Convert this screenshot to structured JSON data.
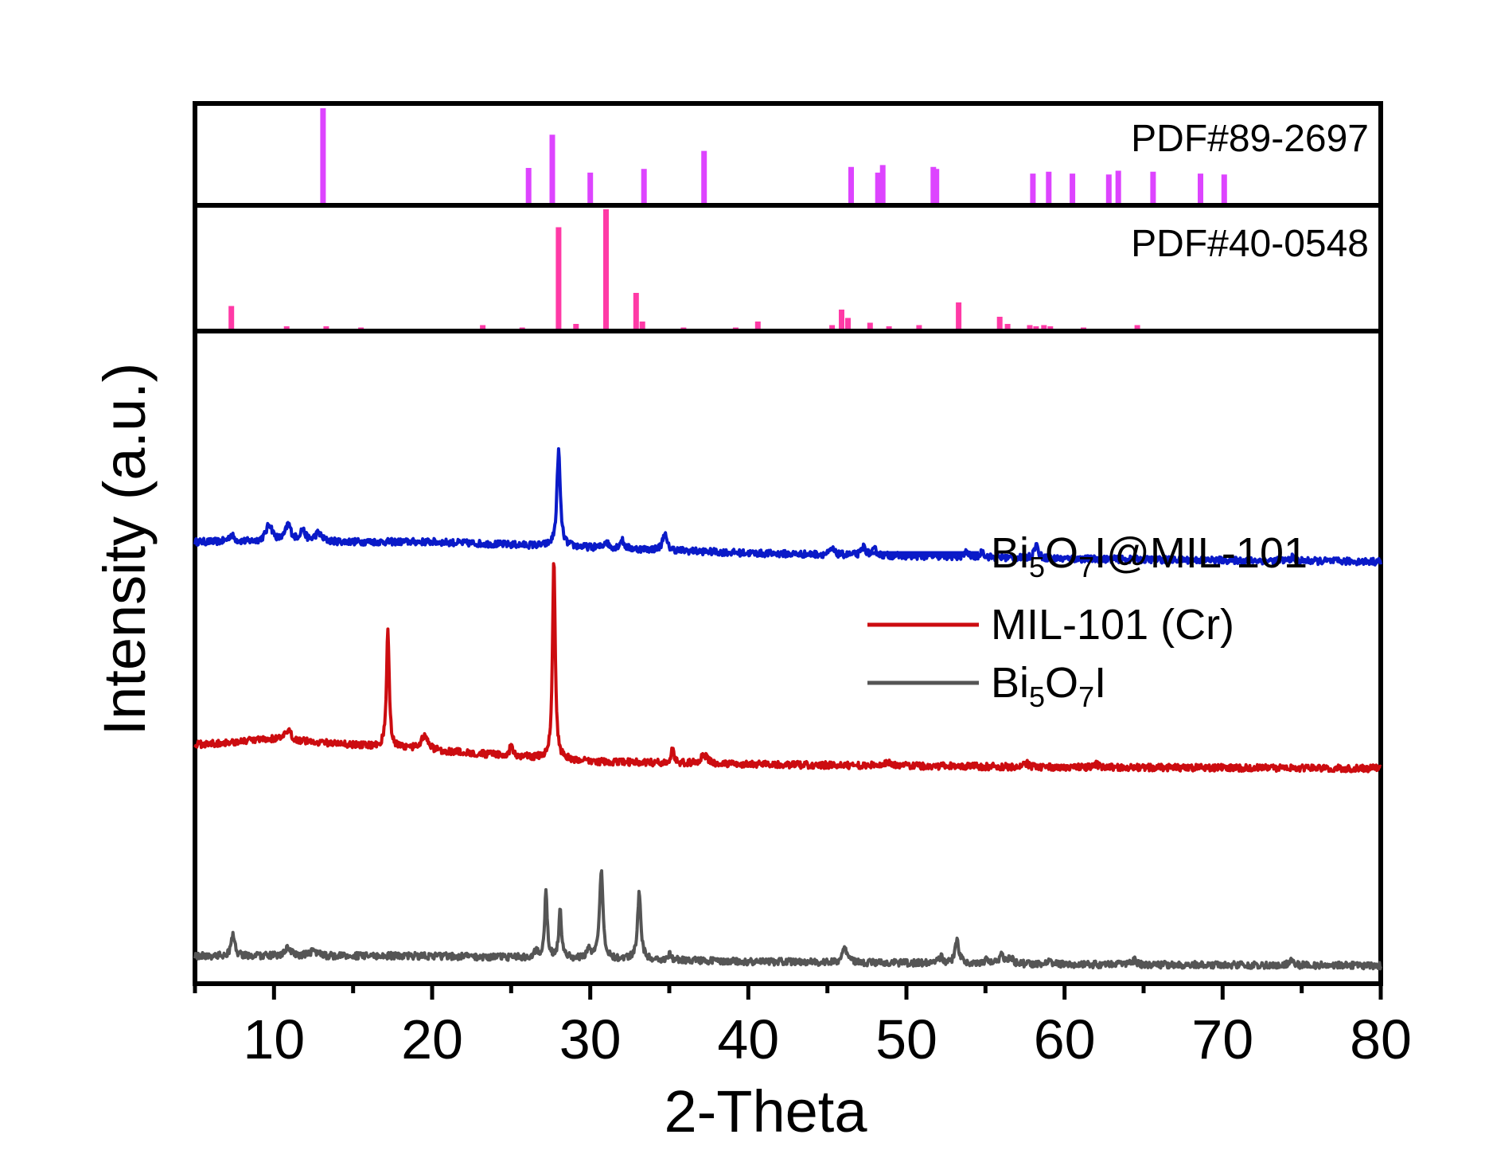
{
  "chart_data": [
    {
      "type": "line",
      "title": "",
      "xlabel": "2-Theta",
      "ylabel": "Intensity (a.u.)",
      "xlim": [
        5,
        80
      ],
      "ylim": [
        0,
        1.15
      ],
      "xticks": [
        "10",
        "20",
        "30",
        "40",
        "50",
        "60",
        "70",
        "80"
      ],
      "xtick_values": [
        10,
        20,
        30,
        40,
        50,
        60,
        70,
        80
      ],
      "legend": [
        {
          "series": "Bi5O7I@MIL-101",
          "prefix": "Bi",
          "sub1": "5",
          "mid": "O",
          "sub2": "7",
          "suffix": "I@MIL-101"
        },
        {
          "series": "MIL-101 (Cr)",
          "prefix": "MIL-101 (Cr)",
          "sub1": "",
          "mid": "",
          "sub2": "",
          "suffix": ""
        },
        {
          "series": "Bi5O7I",
          "prefix": "Bi",
          "sub1": "5",
          "mid": "O",
          "sub2": "7",
          "suffix": "I"
        }
      ],
      "series": [
        {
          "name": "Bi5O7I@MIL-101",
          "color": "#0a1ac8",
          "baseline": [
            [
              5,
              0.78
            ],
            [
              20,
              0.78
            ],
            [
              40,
              0.76
            ],
            [
              60,
              0.75
            ],
            [
              80,
              0.745
            ]
          ],
          "peaks": [
            [
              7.3,
              0.012,
              0.4
            ],
            [
              9.7,
              0.03,
              0.5
            ],
            [
              10.9,
              0.03,
              0.4
            ],
            [
              11.8,
              0.02,
              0.4
            ],
            [
              12.8,
              0.015,
              0.5
            ],
            [
              28.0,
              0.17,
              0.25
            ],
            [
              31.0,
              0.012,
              0.3
            ],
            [
              32.0,
              0.015,
              0.3
            ],
            [
              34.7,
              0.03,
              0.3
            ],
            [
              45.3,
              0.01,
              0.3
            ],
            [
              47.3,
              0.015,
              0.3
            ],
            [
              48.0,
              0.01,
              0.3
            ],
            [
              53.8,
              0.008,
              0.3
            ],
            [
              54.8,
              0.01,
              0.3
            ],
            [
              58.2,
              0.025,
              0.3
            ],
            [
              74.4,
              0.006,
              0.3
            ]
          ]
        },
        {
          "name": "MIL-101 (Cr)",
          "color": "#cc0c10",
          "baseline": [
            [
              5,
              0.42
            ],
            [
              10,
              0.43
            ],
            [
              20,
              0.41
            ],
            [
              30,
              0.39
            ],
            [
              40,
              0.385
            ],
            [
              60,
              0.38
            ],
            [
              80,
              0.378
            ]
          ],
          "peaks": [
            [
              10.9,
              0.015,
              0.5
            ],
            [
              17.2,
              0.21,
              0.2
            ],
            [
              19.5,
              0.025,
              0.5
            ],
            [
              25.0,
              0.02,
              0.2
            ],
            [
              27.7,
              0.36,
              0.2
            ],
            [
              35.2,
              0.025,
              0.2
            ],
            [
              37.2,
              0.015,
              0.5
            ],
            [
              48.8,
              0.008,
              0.3
            ],
            [
              57.6,
              0.006,
              0.3
            ],
            [
              62.0,
              0.006,
              0.3
            ]
          ]
        },
        {
          "name": "Bi5O7I",
          "color": "#555555",
          "baseline": [
            [
              5,
              0.045
            ],
            [
              20,
              0.045
            ],
            [
              40,
              0.035
            ],
            [
              60,
              0.03
            ],
            [
              80,
              0.028
            ]
          ],
          "peaks": [
            [
              7.4,
              0.04,
              0.25
            ],
            [
              10.9,
              0.015,
              0.4
            ],
            [
              12.5,
              0.01,
              0.5
            ],
            [
              26.6,
              0.012,
              0.3
            ],
            [
              27.2,
              0.12,
              0.2
            ],
            [
              28.1,
              0.085,
              0.2
            ],
            [
              29.9,
              0.018,
              0.3
            ],
            [
              30.7,
              0.16,
              0.25
            ],
            [
              33.1,
              0.12,
              0.25
            ],
            [
              35.0,
              0.01,
              0.3
            ],
            [
              46.1,
              0.03,
              0.3
            ],
            [
              52.2,
              0.01,
              0.3
            ],
            [
              53.2,
              0.04,
              0.3
            ],
            [
              55.1,
              0.01,
              0.3
            ],
            [
              56.0,
              0.015,
              0.3
            ],
            [
              56.6,
              0.012,
              0.3
            ],
            [
              59.0,
              0.008,
              0.3
            ],
            [
              64.4,
              0.008,
              0.3
            ],
            [
              74.3,
              0.008,
              0.3
            ]
          ]
        }
      ]
    },
    {
      "type": "bar",
      "title": "PDF#89-2697",
      "color": "#dd44ff",
      "xlim": [
        5,
        80
      ],
      "ylim": [
        0,
        100
      ],
      "x": [
        13.1,
        26.1,
        27.6,
        30.0,
        33.4,
        37.2,
        46.5,
        48.2,
        48.5,
        51.7,
        51.9,
        58.0,
        59.0,
        60.5,
        62.8,
        63.4,
        65.6,
        68.6,
        70.1
      ],
      "values": [
        100,
        37,
        72,
        32,
        36,
        55,
        38,
        32,
        40,
        38,
        36,
        31,
        33,
        31,
        30,
        34,
        33,
        31,
        30
      ]
    },
    {
      "type": "bar",
      "title": "PDF#40-0548",
      "color": "#ff3aa6",
      "xlim": [
        5,
        80
      ],
      "ylim": [
        0,
        100
      ],
      "x": [
        7.3,
        10.8,
        13.3,
        15.5,
        23.2,
        25.7,
        28.0,
        29.1,
        31.0,
        32.9,
        33.3,
        35.9,
        39.2,
        40.6,
        45.3,
        45.9,
        46.3,
        47.7,
        48.9,
        50.8,
        53.3,
        55.9,
        56.4,
        57.8,
        58.2,
        58.7,
        59.1,
        61.2,
        64.6
      ],
      "values": [
        19,
        2,
        2,
        1,
        3,
        1,
        85,
        4,
        100,
        30,
        6,
        1,
        1,
        6,
        3,
        16,
        9,
        5,
        2,
        3,
        22,
        10,
        4,
        3,
        2,
        3,
        2,
        1,
        3
      ]
    }
  ]
}
